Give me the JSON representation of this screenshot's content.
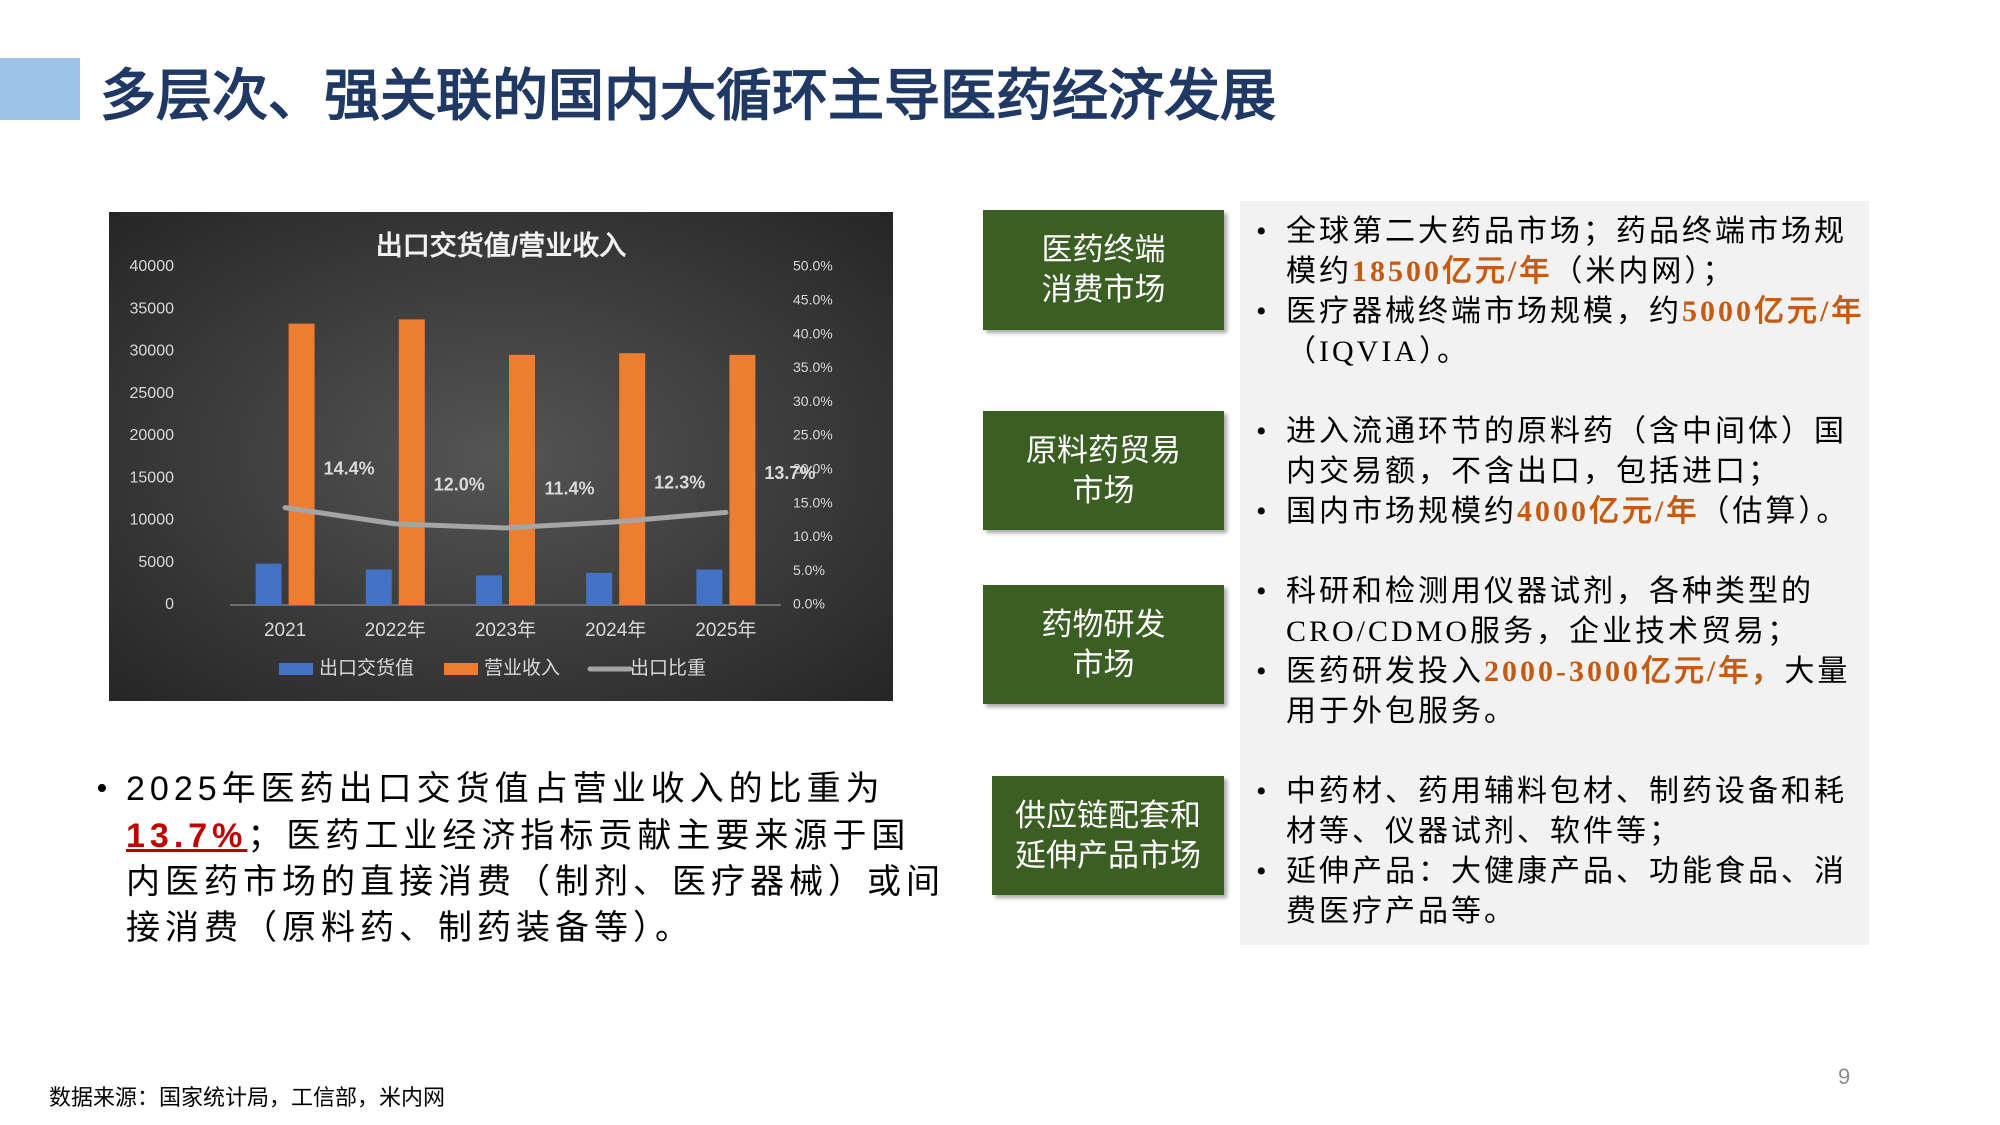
{
  "header": {
    "title": "多层次、强关联的国内大循环主导医药经济发展"
  },
  "chart_data": {
    "type": "bar",
    "title": "出口交货值/营业收入",
    "categories": [
      "2021",
      "2022年",
      "2023年",
      "2024年",
      "2025年"
    ],
    "series": [
      {
        "name": "出口交货值",
        "type": "bar",
        "color": "#4472c4",
        "values": [
          4900,
          4200,
          3500,
          3800,
          4200
        ]
      },
      {
        "name": "营业收入",
        "type": "bar",
        "color": "#ed7d31",
        "values": [
          33300,
          33800,
          29600,
          29800,
          29600
        ]
      },
      {
        "name": "出口比重",
        "type": "line",
        "axis": "y2",
        "color": "#a5a5a5",
        "values": [
          14.4,
          12.0,
          11.4,
          12.3,
          13.7
        ],
        "value_labels": [
          "14.4%",
          "12.0%",
          "11.4%",
          "12.3%",
          "13.7%"
        ]
      }
    ],
    "ylim": [
      0,
      40000
    ],
    "yticks": [
      0,
      5000,
      10000,
      15000,
      20000,
      25000,
      30000,
      35000,
      40000
    ],
    "y2lim": [
      0,
      50
    ],
    "y2ticks": [
      {
        "value": 0,
        "label": "0.0%"
      },
      {
        "value": 5,
        "label": "5.0%"
      },
      {
        "value": 10,
        "label": "10.0%"
      },
      {
        "value": 15,
        "label": "15.0%"
      },
      {
        "value": 20,
        "label": "20.0%"
      },
      {
        "value": 25,
        "label": "25.0%"
      },
      {
        "value": 30,
        "label": "30.0%"
      },
      {
        "value": 35,
        "label": "35.0%"
      },
      {
        "value": 40,
        "label": "40.0%"
      },
      {
        "value": 45,
        "label": "45.0%"
      },
      {
        "value": 50,
        "label": "50.0%"
      }
    ],
    "legend": "bottom"
  },
  "summary": {
    "runs": [
      {
        "text": "2025年医药出口交货值占营业收入的比重为"
      },
      {
        "text": "13.7%",
        "emphasis": true
      },
      {
        "text": "；医药工业经济指标贡献主要来源于国内医药市场的直接消费（制剂、医疗器械）或间接消费（原料药、制药装备等）。"
      }
    ]
  },
  "markets": [
    {
      "label": [
        "医药终端",
        "消费市场"
      ],
      "bullets": [
        [
          {
            "text": "全球第二大药品市场；药品终端市场规模约"
          },
          {
            "text": "18500亿元/年",
            "emphasis": true
          },
          {
            "text": "（米内网）；"
          }
        ],
        [
          {
            "text": "医疗器械终端市场规模，约"
          },
          {
            "text": "5000亿元/年",
            "emphasis": true
          },
          {
            "text": "（IQVIA）。"
          }
        ]
      ]
    },
    {
      "label": [
        "原料药贸易",
        "市场"
      ],
      "bullets": [
        [
          {
            "text": "进入流通环节的原料药（含中间体）国内交易额，不含出口，包括进口；"
          }
        ],
        [
          {
            "text": "国内市场规模约"
          },
          {
            "text": "4000亿元/年",
            "emphasis": true
          },
          {
            "text": "（估算）。"
          }
        ]
      ]
    },
    {
      "label": [
        "药物研发",
        "市场"
      ],
      "bullets": [
        [
          {
            "text": "科研和检测用仪器试剂，各种类型的CRO/CDMO服务，企业技术贸易；"
          }
        ],
        [
          {
            "text": "医药研发投入"
          },
          {
            "text": "2000-3000亿元/年，",
            "emphasis": true
          },
          {
            "text": "大量用于外包服务。"
          }
        ]
      ]
    },
    {
      "label": [
        "供应链配套和",
        "延伸产品市场"
      ],
      "bullets": [
        [
          {
            "text": "中药材、药用辅料包材、制药设备和耗材等、仪器试剂、软件等；"
          }
        ],
        [
          {
            "text": "延伸产品：大健康产品、功能食品、消费医疗产品等。"
          }
        ]
      ]
    }
  ],
  "source": "数据来源：国家统计局，工信部，米内网",
  "page_number": 9
}
